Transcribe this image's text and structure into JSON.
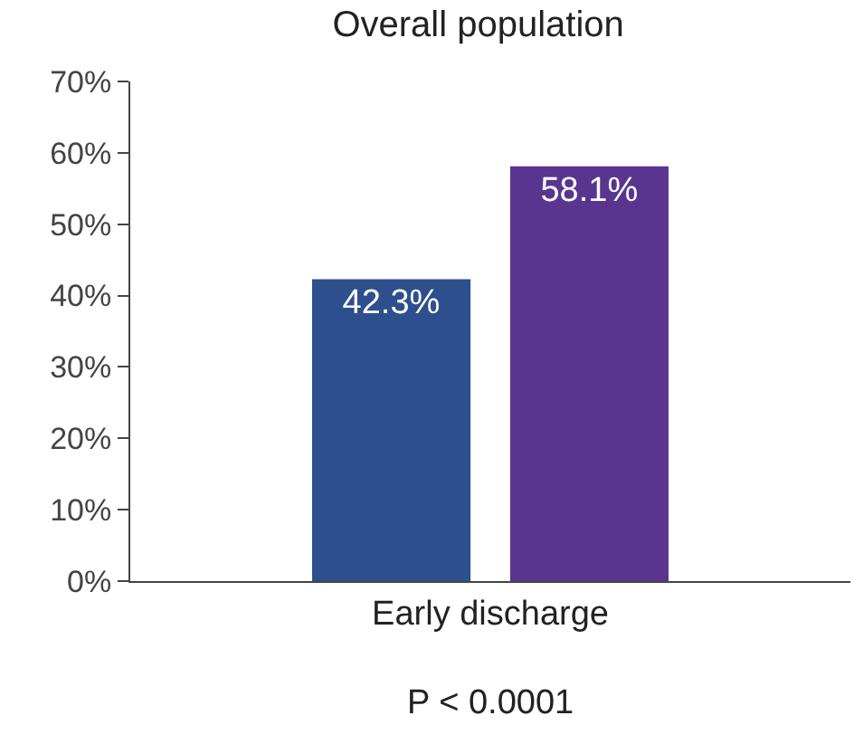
{
  "chart_data": {
    "type": "bar",
    "title": "Overall population",
    "categories": [
      "Early discharge"
    ],
    "series": [
      {
        "color": "#2e4f8e",
        "values": [
          42.3
        ],
        "value_labels": [
          "42.3%"
        ]
      },
      {
        "color": "#5a3590",
        "values": [
          58.1
        ],
        "value_labels": [
          "58.1%"
        ]
      }
    ],
    "ylim": [
      0,
      70
    ],
    "yticks": [
      {
        "value": 0,
        "label": "0%"
      },
      {
        "value": 10,
        "label": "10%"
      },
      {
        "value": 20,
        "label": "20%"
      },
      {
        "value": 30,
        "label": "30%"
      },
      {
        "value": 40,
        "label": "40%"
      },
      {
        "value": 50,
        "label": "50%"
      },
      {
        "value": 60,
        "label": "60%"
      },
      {
        "value": 70,
        "label": "70%"
      }
    ],
    "grid": false,
    "legend": false,
    "annotations": [
      "P < 0.0001"
    ]
  }
}
